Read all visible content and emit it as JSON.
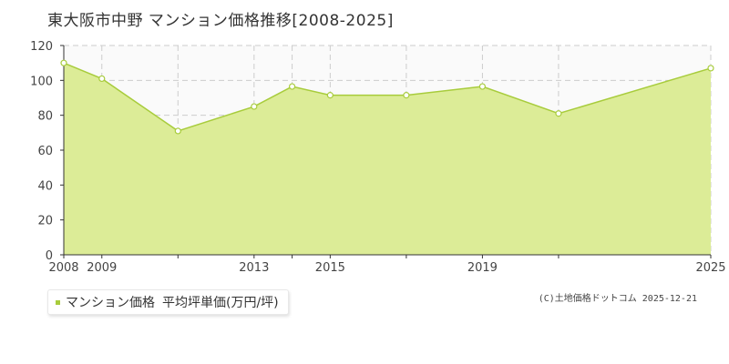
{
  "chart_data": {
    "type": "area",
    "title": "東大阪市中野 マンション価格推移[2008-2025]",
    "x": [
      2008,
      2009,
      2011,
      2013,
      2014,
      2015,
      2017,
      2019,
      2021,
      2025
    ],
    "series": [
      {
        "name": "マンション価格",
        "values": [
          110,
          101,
          71,
          85,
          96.5,
          91.5,
          91.5,
          96.5,
          81,
          107
        ]
      }
    ],
    "x_tick_labels": [
      "2008",
      "2009",
      "2013",
      "2015",
      "2019",
      "2025"
    ],
    "y_tick_labels": [
      "0",
      "20",
      "40",
      "60",
      "80",
      "100",
      "120"
    ],
    "xlim": [
      2008,
      2025
    ],
    "ylim": [
      0,
      120
    ],
    "grid": true,
    "legend_position": "bottom-left",
    "colors": {
      "fill": "#dcec97",
      "line": "#a8cc3c",
      "point_fill": "#ffffff",
      "grid": "#cccccc"
    }
  },
  "legend": {
    "series_label": "マンション価格",
    "unit_label": "平均坪単価(万円/坪)"
  },
  "credit": "(C)土地価格ドットコム 2025-12-21"
}
